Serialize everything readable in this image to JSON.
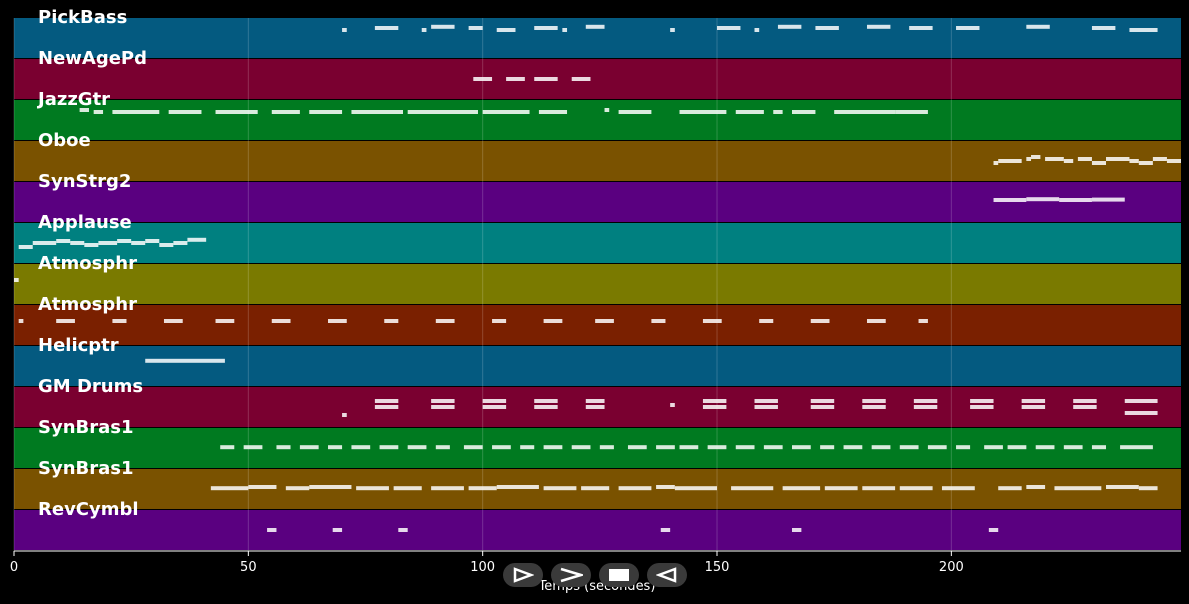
{
  "chart_data": {
    "type": "piano-roll",
    "xlabel": "Temps (secondes)",
    "xlim": [
      0,
      249
    ],
    "x_ticks": [
      0,
      50,
      100,
      150,
      200
    ],
    "tracks": [
      {
        "name": "PickBass",
        "color": "#045a80",
        "notes": [
          [
            70,
            71,
            0.3
          ],
          [
            77,
            82,
            0.25
          ],
          [
            87,
            88,
            0.3
          ],
          [
            89,
            94,
            0.22
          ],
          [
            97,
            100,
            0.25
          ],
          [
            103,
            107,
            0.3
          ],
          [
            111,
            116,
            0.25
          ],
          [
            117,
            118,
            0.3
          ],
          [
            122,
            126,
            0.22
          ],
          [
            140,
            141,
            0.3
          ],
          [
            150,
            155,
            0.25
          ],
          [
            158,
            159,
            0.3
          ],
          [
            163,
            168,
            0.22
          ],
          [
            171,
            176,
            0.25
          ],
          [
            182,
            187,
            0.22
          ],
          [
            191,
            196,
            0.25
          ],
          [
            201,
            206,
            0.25
          ],
          [
            216,
            221,
            0.22
          ],
          [
            230,
            235,
            0.25
          ],
          [
            238,
            244,
            0.3
          ]
        ]
      },
      {
        "name": "NewAgePd",
        "color": "#7a0030",
        "notes": [
          [
            98,
            102,
            0.5
          ],
          [
            105,
            109,
            0.5
          ],
          [
            111,
            116,
            0.5
          ],
          [
            119,
            123,
            0.5
          ]
        ]
      },
      {
        "name": "JazzGtr",
        "color": "#007a20",
        "notes": [
          [
            14,
            16,
            0.25
          ],
          [
            17,
            19,
            0.3
          ],
          [
            21,
            31,
            0.3
          ],
          [
            33,
            40,
            0.3
          ],
          [
            43,
            52,
            0.3
          ],
          [
            55,
            61,
            0.3
          ],
          [
            63,
            70,
            0.3
          ],
          [
            72,
            83,
            0.3
          ],
          [
            84,
            99,
            0.3
          ],
          [
            100,
            110,
            0.3
          ],
          [
            112,
            118,
            0.3
          ],
          [
            126,
            127,
            0.25
          ],
          [
            129,
            136,
            0.3
          ],
          [
            142,
            152,
            0.3
          ],
          [
            154,
            160,
            0.3
          ],
          [
            162,
            164,
            0.3
          ],
          [
            166,
            171,
            0.3
          ],
          [
            175,
            188,
            0.3
          ],
          [
            188,
            195,
            0.3
          ]
        ]
      },
      {
        "name": "Oboe",
        "color": "#7a5200",
        "notes": [
          [
            209,
            210,
            0.55
          ],
          [
            210,
            215,
            0.5
          ],
          [
            216,
            217,
            0.45
          ],
          [
            217,
            219,
            0.4
          ],
          [
            220,
            224,
            0.45
          ],
          [
            224,
            226,
            0.5
          ],
          [
            227,
            230,
            0.45
          ],
          [
            230,
            233,
            0.55
          ],
          [
            233,
            238,
            0.45
          ],
          [
            238,
            240,
            0.5
          ],
          [
            240,
            243,
            0.55
          ],
          [
            243,
            246,
            0.45
          ],
          [
            246,
            249,
            0.5
          ]
        ]
      },
      {
        "name": "SynStrg2",
        "color": "#5a0080",
        "notes": [
          [
            209,
            216,
            0.45
          ],
          [
            216,
            223,
            0.43
          ],
          [
            223,
            230,
            0.45
          ],
          [
            230,
            237,
            0.44
          ]
        ]
      },
      {
        "name": "Applause",
        "color": "#008080",
        "notes": [
          [
            1,
            4,
            0.6
          ],
          [
            4,
            9,
            0.5
          ],
          [
            9,
            12,
            0.45
          ],
          [
            12,
            15,
            0.5
          ],
          [
            15,
            18,
            0.55
          ],
          [
            18,
            22,
            0.5
          ],
          [
            22,
            25,
            0.45
          ],
          [
            25,
            28,
            0.5
          ],
          [
            28,
            31,
            0.45
          ],
          [
            31,
            34,
            0.55
          ],
          [
            34,
            37,
            0.5
          ],
          [
            37,
            41,
            0.42
          ]
        ]
      },
      {
        "name": "Atmosphr",
        "color": "#7a7a00",
        "notes": [
          [
            0,
            1,
            0.4
          ]
        ]
      },
      {
        "name": "Atmosphr",
        "color": "#7a2000",
        "notes": [
          [
            1,
            2,
            0.4
          ],
          [
            9,
            13,
            0.4
          ],
          [
            21,
            24,
            0.4
          ],
          [
            32,
            36,
            0.4
          ],
          [
            43,
            47,
            0.4
          ],
          [
            55,
            59,
            0.4
          ],
          [
            67,
            71,
            0.4
          ],
          [
            79,
            82,
            0.4
          ],
          [
            90,
            94,
            0.4
          ],
          [
            102,
            105,
            0.4
          ],
          [
            113,
            117,
            0.4
          ],
          [
            124,
            128,
            0.4
          ],
          [
            136,
            139,
            0.4
          ],
          [
            147,
            151,
            0.4
          ],
          [
            159,
            162,
            0.4
          ],
          [
            170,
            174,
            0.4
          ],
          [
            182,
            186,
            0.4
          ],
          [
            193,
            195,
            0.4
          ]
        ]
      },
      {
        "name": "Helicptr",
        "color": "#045a80",
        "notes": [
          [
            28,
            45,
            0.37
          ]
        ]
      },
      {
        "name": "GM Drums",
        "color": "#7a0030",
        "notes": [
          [
            70,
            71,
            0.7
          ],
          [
            77,
            82,
            0.5
          ],
          [
            77,
            82,
            0.35
          ],
          [
            89,
            94,
            0.5
          ],
          [
            89,
            94,
            0.35
          ],
          [
            100,
            105,
            0.5
          ],
          [
            100,
            105,
            0.35
          ],
          [
            111,
            116,
            0.5
          ],
          [
            111,
            116,
            0.35
          ],
          [
            122,
            126,
            0.5
          ],
          [
            122,
            126,
            0.35
          ],
          [
            140,
            141,
            0.45
          ],
          [
            147,
            152,
            0.5
          ],
          [
            147,
            152,
            0.35
          ],
          [
            158,
            163,
            0.5
          ],
          [
            158,
            163,
            0.35
          ],
          [
            170,
            175,
            0.5
          ],
          [
            170,
            175,
            0.35
          ],
          [
            181,
            186,
            0.5
          ],
          [
            181,
            186,
            0.35
          ],
          [
            192,
            197,
            0.5
          ],
          [
            192,
            197,
            0.35
          ],
          [
            204,
            209,
            0.5
          ],
          [
            204,
            209,
            0.35
          ],
          [
            215,
            220,
            0.5
          ],
          [
            215,
            220,
            0.35
          ],
          [
            226,
            231,
            0.5
          ],
          [
            226,
            231,
            0.35
          ],
          [
            237,
            244,
            0.65
          ],
          [
            237,
            244,
            0.35
          ]
        ]
      },
      {
        "name": "SynBras1",
        "color": "#007a20",
        "notes": [
          [
            44,
            47,
            0.48
          ],
          [
            49,
            53,
            0.48
          ],
          [
            56,
            59,
            0.48
          ],
          [
            61,
            65,
            0.48
          ],
          [
            67,
            70,
            0.48
          ],
          [
            72,
            76,
            0.48
          ],
          [
            78,
            82,
            0.48
          ],
          [
            84,
            88,
            0.48
          ],
          [
            90,
            93,
            0.48
          ],
          [
            96,
            100,
            0.48
          ],
          [
            102,
            106,
            0.48
          ],
          [
            108,
            111,
            0.48
          ],
          [
            113,
            117,
            0.48
          ],
          [
            119,
            123,
            0.48
          ],
          [
            125,
            128,
            0.48
          ],
          [
            131,
            135,
            0.48
          ],
          [
            137,
            141,
            0.48
          ],
          [
            142,
            146,
            0.48
          ],
          [
            148,
            152,
            0.48
          ],
          [
            154,
            158,
            0.48
          ],
          [
            160,
            164,
            0.48
          ],
          [
            166,
            170,
            0.48
          ],
          [
            172,
            175,
            0.48
          ],
          [
            177,
            181,
            0.48
          ],
          [
            183,
            187,
            0.48
          ],
          [
            189,
            193,
            0.48
          ],
          [
            195,
            199,
            0.48
          ],
          [
            201,
            204,
            0.48
          ],
          [
            207,
            211,
            0.48
          ],
          [
            212,
            216,
            0.48
          ],
          [
            218,
            222,
            0.48
          ],
          [
            224,
            228,
            0.48
          ],
          [
            230,
            233,
            0.48
          ],
          [
            236,
            243,
            0.48
          ]
        ]
      },
      {
        "name": "SynBras1",
        "color": "#7a5200",
        "notes": [
          [
            42,
            50,
            0.48
          ],
          [
            50,
            56,
            0.45
          ],
          [
            58,
            63,
            0.48
          ],
          [
            63,
            72,
            0.45
          ],
          [
            73,
            80,
            0.48
          ],
          [
            81,
            87,
            0.48
          ],
          [
            89,
            96,
            0.48
          ],
          [
            97,
            103,
            0.48
          ],
          [
            103,
            112,
            0.45
          ],
          [
            113,
            120,
            0.48
          ],
          [
            121,
            127,
            0.48
          ],
          [
            129,
            136,
            0.48
          ],
          [
            137,
            141,
            0.45
          ],
          [
            141,
            150,
            0.48
          ],
          [
            153,
            162,
            0.48
          ],
          [
            164,
            172,
            0.48
          ],
          [
            173,
            180,
            0.48
          ],
          [
            181,
            188,
            0.48
          ],
          [
            189,
            196,
            0.48
          ],
          [
            198,
            205,
            0.48
          ],
          [
            210,
            215,
            0.48
          ],
          [
            216,
            220,
            0.45
          ],
          [
            222,
            232,
            0.48
          ],
          [
            233,
            240,
            0.45
          ],
          [
            240,
            244,
            0.48
          ]
        ]
      },
      {
        "name": "RevCymbl",
        "color": "#5a0080",
        "notes": [
          [
            54,
            56,
            0.5
          ],
          [
            68,
            70,
            0.5
          ],
          [
            82,
            84,
            0.5
          ],
          [
            138,
            140,
            0.5
          ],
          [
            166,
            168,
            0.5
          ],
          [
            208,
            210,
            0.5
          ]
        ]
      }
    ]
  },
  "controls": {
    "play_icon": "play-icon",
    "forward_icon": "forward-icon",
    "stop_icon": "stop-icon",
    "back_icon": "back-icon"
  }
}
